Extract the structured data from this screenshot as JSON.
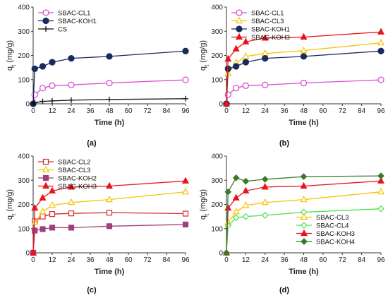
{
  "chart_data": [
    {
      "type": "line",
      "panel_label": "(a)",
      "xlabel": "Time (h)",
      "ylabel_main": "q",
      "ylabel_sub": "t",
      "ylabel_unit": " (mg/g)",
      "xlim": [
        0,
        96
      ],
      "ylim": [
        0,
        400
      ],
      "xticks": [
        "0",
        "12",
        "24",
        "36",
        "48",
        "60",
        "72",
        "84",
        "96"
      ],
      "yticks": [
        "0",
        "100",
        "200",
        "300",
        "400"
      ],
      "legend_position": "top-left",
      "series": [
        {
          "name": "SBAC-CL1",
          "color": "#d94fd0",
          "marker": "open-circle",
          "x": [
            0,
            1,
            6,
            12,
            24,
            48,
            96
          ],
          "y": [
            0,
            38,
            65,
            75,
            78,
            86,
            99
          ]
        },
        {
          "name": "SBAC-KOH1",
          "color": "#1a2a5e",
          "marker": "filled-circle",
          "x": [
            0,
            1,
            6,
            12,
            24,
            48,
            96
          ],
          "y": [
            0,
            145,
            155,
            172,
            188,
            196,
            218
          ]
        },
        {
          "name": "CS",
          "color": "#111111",
          "marker": "plus",
          "x": [
            0,
            1,
            6,
            12,
            24,
            48,
            96
          ],
          "y": [
            0,
            5,
            10,
            12,
            15,
            18,
            21
          ]
        }
      ]
    },
    {
      "type": "line",
      "panel_label": "(b)",
      "xlabel": "Time (h)",
      "ylabel_main": "q",
      "ylabel_sub": "t",
      "ylabel_unit": " (mg/g)",
      "xlim": [
        0,
        96
      ],
      "ylim": [
        0,
        400
      ],
      "xticks": [
        "0",
        "12",
        "24",
        "36",
        "48",
        "60",
        "72",
        "84",
        "96"
      ],
      "yticks": [
        "0",
        "100",
        "200",
        "300",
        "400"
      ],
      "legend_position": "top-left",
      "series": [
        {
          "name": "SBAC-CL1",
          "color": "#d94fd0",
          "marker": "open-circle",
          "x": [
            0,
            1,
            6,
            12,
            24,
            48,
            96
          ],
          "y": [
            0,
            38,
            65,
            75,
            78,
            86,
            99
          ]
        },
        {
          "name": "SBAC-CL3",
          "color": "#f5c400",
          "marker": "open-triangle",
          "x": [
            0,
            1,
            6,
            12,
            24,
            48,
            96
          ],
          "y": [
            0,
            125,
            170,
            196,
            208,
            220,
            252
          ]
        },
        {
          "name": "SBAC-KOH1",
          "color": "#1a2a5e",
          "marker": "filled-circle",
          "x": [
            0,
            1,
            6,
            12,
            24,
            48,
            96
          ],
          "y": [
            0,
            145,
            155,
            172,
            188,
            196,
            218
          ]
        },
        {
          "name": "SBAC-KOH3",
          "color": "#e8141c",
          "marker": "filled-triangle",
          "x": [
            0,
            1,
            6,
            12,
            24,
            48,
            96
          ],
          "y": [
            0,
            185,
            227,
            256,
            272,
            276,
            297
          ]
        }
      ]
    },
    {
      "type": "line",
      "panel_label": "(c)",
      "xlabel": "Time (h)",
      "ylabel_main": "q",
      "ylabel_sub": "t",
      "ylabel_unit": " (mg/g)",
      "xlim": [
        0,
        96
      ],
      "ylim": [
        0,
        400
      ],
      "xticks": [
        "0",
        "12",
        "24",
        "36",
        "48",
        "60",
        "72",
        "84",
        "96"
      ],
      "yticks": [
        "0",
        "100",
        "200",
        "300",
        "400"
      ],
      "legend_position": "top-left",
      "series": [
        {
          "name": "SBAC-CL2",
          "color": "#d42a2a",
          "marker": "open-square",
          "x": [
            0,
            1,
            6,
            12,
            24,
            48,
            96
          ],
          "y": [
            0,
            130,
            150,
            160,
            163,
            166,
            162
          ]
        },
        {
          "name": "SBAC-CL3",
          "color": "#f5c400",
          "marker": "open-triangle",
          "x": [
            0,
            1,
            6,
            12,
            24,
            48,
            96
          ],
          "y": [
            0,
            125,
            170,
            196,
            208,
            220,
            252
          ]
        },
        {
          "name": "SBAC-KOH2",
          "color": "#a0407a",
          "marker": "filled-square",
          "x": [
            0,
            1,
            6,
            12,
            24,
            48,
            96
          ],
          "y": [
            0,
            92,
            98,
            104,
            104,
            110,
            117
          ]
        },
        {
          "name": "SBAC-KOH3",
          "color": "#e8141c",
          "marker": "filled-triangle",
          "x": [
            0,
            1,
            6,
            12,
            24,
            48,
            96
          ],
          "y": [
            0,
            185,
            227,
            256,
            272,
            276,
            297
          ]
        }
      ]
    },
    {
      "type": "line",
      "panel_label": "(d)",
      "xlabel": "Time (h)",
      "ylabel_main": "q",
      "ylabel_sub": "t",
      "ylabel_unit": " (mg/g)",
      "xlim": [
        0,
        96
      ],
      "ylim": [
        0,
        400
      ],
      "xticks": [
        "0",
        "12",
        "24",
        "36",
        "48",
        "60",
        "72",
        "84",
        "96"
      ],
      "yticks": [
        "0",
        "100",
        "200",
        "300",
        "400"
      ],
      "legend_position": "bottom-right",
      "series": [
        {
          "name": "SBAC-CL3",
          "color": "#f5c400",
          "marker": "open-triangle",
          "x": [
            0,
            1,
            6,
            12,
            24,
            48,
            96
          ],
          "y": [
            0,
            125,
            170,
            196,
            208,
            220,
            252
          ]
        },
        {
          "name": "SBAC-CL4",
          "color": "#4be04b",
          "marker": "open-diamond",
          "x": [
            0,
            1,
            6,
            12,
            24,
            48,
            96
          ],
          "y": [
            0,
            112,
            145,
            150,
            155,
            168,
            182
          ]
        },
        {
          "name": "SBAC-KOH3",
          "color": "#e8141c",
          "marker": "filled-triangle",
          "x": [
            0,
            1,
            6,
            12,
            24,
            48,
            96
          ],
          "y": [
            0,
            185,
            227,
            256,
            272,
            276,
            297
          ]
        },
        {
          "name": "SBAC-KOH4",
          "color": "#3b7a28",
          "marker": "filled-diamond",
          "x": [
            0,
            1,
            6,
            12,
            24,
            48,
            96
          ],
          "y": [
            0,
            252,
            310,
            296,
            304,
            315,
            318
          ]
        }
      ]
    }
  ]
}
